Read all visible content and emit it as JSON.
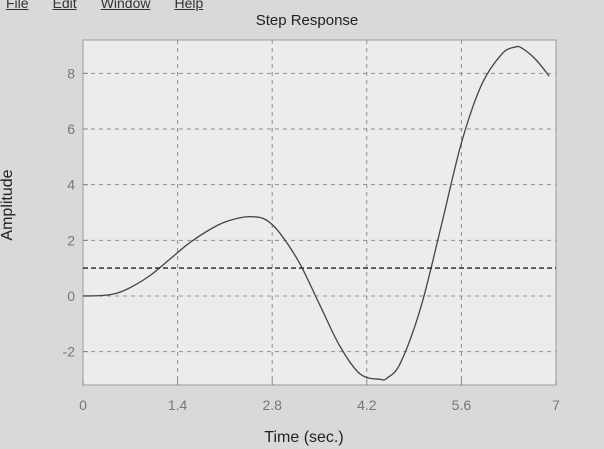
{
  "menu": [
    {
      "label": "File"
    },
    {
      "label": "Edit"
    },
    {
      "label": "Window"
    },
    {
      "label": "Help"
    }
  ],
  "chart_data": {
    "type": "line",
    "title": "Step Response",
    "xlabel": "Time (sec.)",
    "ylabel": "Amplitude",
    "xlim": [
      0,
      7
    ],
    "ylim": [
      -3.2,
      9.2
    ],
    "xticks": [
      "0",
      "1.4",
      "2.8",
      "4.2",
      "5.6",
      "7"
    ],
    "xtick_values": [
      0,
      1.4,
      2.8,
      4.2,
      5.6,
      7
    ],
    "yticks": [
      "-2",
      "0",
      "2",
      "4",
      "6",
      "8"
    ],
    "ytick_values": [
      -2,
      0,
      2,
      4,
      6,
      8
    ],
    "grid": true,
    "series": [
      {
        "x": [
          0,
          0.3,
          0.5,
          0.7,
          1.0,
          1.3,
          1.6,
          2.0,
          2.3,
          2.5,
          2.7,
          2.9,
          3.2,
          3.5,
          3.8,
          4.1,
          4.4,
          4.5,
          4.7,
          5.0,
          5.3,
          5.6,
          5.9,
          6.2,
          6.4,
          6.5,
          6.7,
          6.9
        ],
        "values": [
          0,
          0.02,
          0.1,
          0.3,
          0.75,
          1.35,
          1.95,
          2.55,
          2.8,
          2.85,
          2.75,
          2.3,
          1.2,
          -0.3,
          -1.8,
          -2.8,
          -3.0,
          -2.95,
          -2.4,
          -0.4,
          2.5,
          5.5,
          7.6,
          8.7,
          8.95,
          8.9,
          8.5,
          7.9
        ],
        "color": "#444444",
        "style": "solid"
      },
      {
        "x": [
          0,
          7
        ],
        "values": [
          1,
          1
        ],
        "color": "#222222",
        "style": "dashed"
      }
    ]
  }
}
